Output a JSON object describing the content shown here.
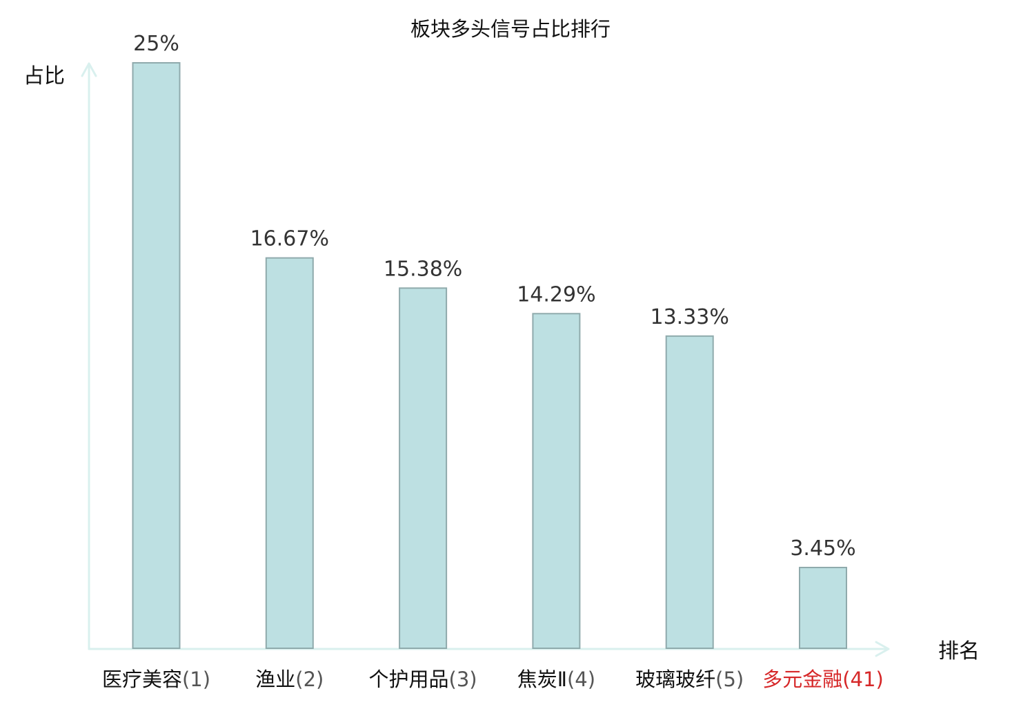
{
  "chart_data": {
    "type": "bar",
    "title": "板块多头信号占比排行",
    "ylabel": "占比",
    "xlabel": "排名",
    "categories": [
      {
        "name": "医疗美容",
        "rank": "(1)",
        "highlight": false
      },
      {
        "name": "渔业",
        "rank": "(2)",
        "highlight": false
      },
      {
        "name": "个护用品",
        "rank": "(3)",
        "highlight": false
      },
      {
        "name": "焦炭Ⅱ",
        "rank": "(4)",
        "highlight": false
      },
      {
        "name": "玻璃玻纤",
        "rank": "(5)",
        "highlight": false
      },
      {
        "name": "多元金融",
        "rank": "(41)",
        "highlight": true
      }
    ],
    "values": [
      25,
      16.67,
      15.38,
      14.29,
      13.33,
      3.45
    ],
    "value_labels": [
      "25%",
      "16.67%",
      "15.38%",
      "14.29%",
      "13.33%",
      "3.45%"
    ],
    "ylim": [
      0,
      25
    ],
    "grid": false,
    "legend": "none",
    "colors": {
      "bar_fill": "#bde0e2",
      "bar_stroke": "#8faaac",
      "axis": "#d9f0ee",
      "label_text": "#111111",
      "value_text": "#333333",
      "category_text": "#111111",
      "rank_text": "#555555",
      "highlight_text": "#d62728"
    }
  }
}
